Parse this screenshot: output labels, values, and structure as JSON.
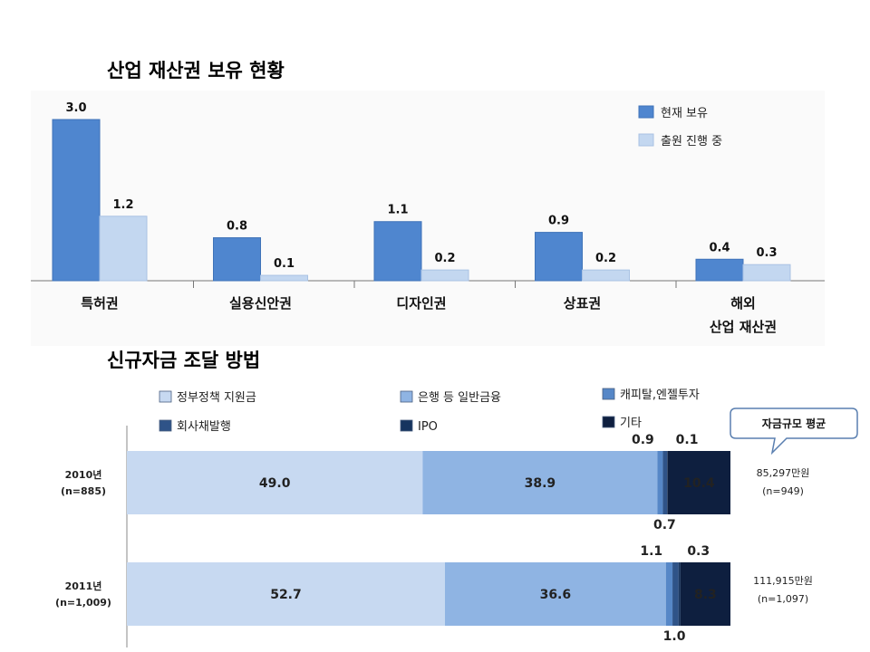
{
  "chart_data": [
    {
      "type": "bar",
      "title": "산업 재산권 보유 현황",
      "categories": [
        "특허권",
        "실용신안권",
        "디자인권",
        "상표권",
        "해외\n산업 재산권"
      ],
      "series": [
        {
          "name": "현재 보유",
          "values": [
            3.0,
            0.8,
            1.1,
            0.9,
            0.4
          ],
          "labels": [
            "3.0",
            "0.8",
            "1.1",
            "0.9",
            "0.4"
          ],
          "color": "#4f86cf"
        },
        {
          "name": "출원 진행 중",
          "values": [
            1.2,
            0.1,
            0.2,
            0.2,
            0.3
          ],
          "labels": [
            "1.2",
            "0.1",
            "0.2",
            "0.2",
            "0.3"
          ],
          "color": "#c3d7f0"
        }
      ],
      "ylim": [
        0,
        3.0
      ],
      "legend": "top-right",
      "grid": false
    },
    {
      "type": "bar",
      "orientation": "horizontal-stacked-percent",
      "title": "신규자금 조달 방법",
      "categories": [
        "2010년\n(n=885)",
        "2011년\n(n=1,009)"
      ],
      "series": [
        {
          "name": "정부정책 지원금",
          "values": [
            49.0,
            52.7
          ],
          "labels": [
            "49.0",
            "52.7"
          ],
          "color": "#c7d9f1"
        },
        {
          "name": "은행 등 일반금융",
          "values": [
            38.9,
            36.6
          ],
          "labels": [
            "38.9",
            "36.6"
          ],
          "color": "#8fb4e3"
        },
        {
          "name": "캐피탈,엔젤투자",
          "values": [
            0.9,
            1.1
          ],
          "labels": [
            "0.9",
            "1.1"
          ],
          "color": "#5687c7"
        },
        {
          "name": "회사채발행",
          "values": [
            0.7,
            1.0
          ],
          "labels": [
            "0.7",
            "1.0"
          ],
          "color": "#2f5388"
        },
        {
          "name": "IPO",
          "values": [
            0.1,
            0.3
          ],
          "labels": [
            "0.1",
            "0.3"
          ],
          "color": "#16345f"
        },
        {
          "name": "기타",
          "values": [
            10.4,
            8.3
          ],
          "labels": [
            "10.4",
            "8.3"
          ],
          "color": "#0e1f3f"
        }
      ],
      "xlim": [
        0,
        100
      ],
      "legend": "top",
      "callout": "자금규모 평균",
      "side_labels": [
        [
          "85,297만원",
          "(n=949)"
        ],
        [
          "111,915만원",
          "(n=1,097)"
        ]
      ]
    }
  ]
}
